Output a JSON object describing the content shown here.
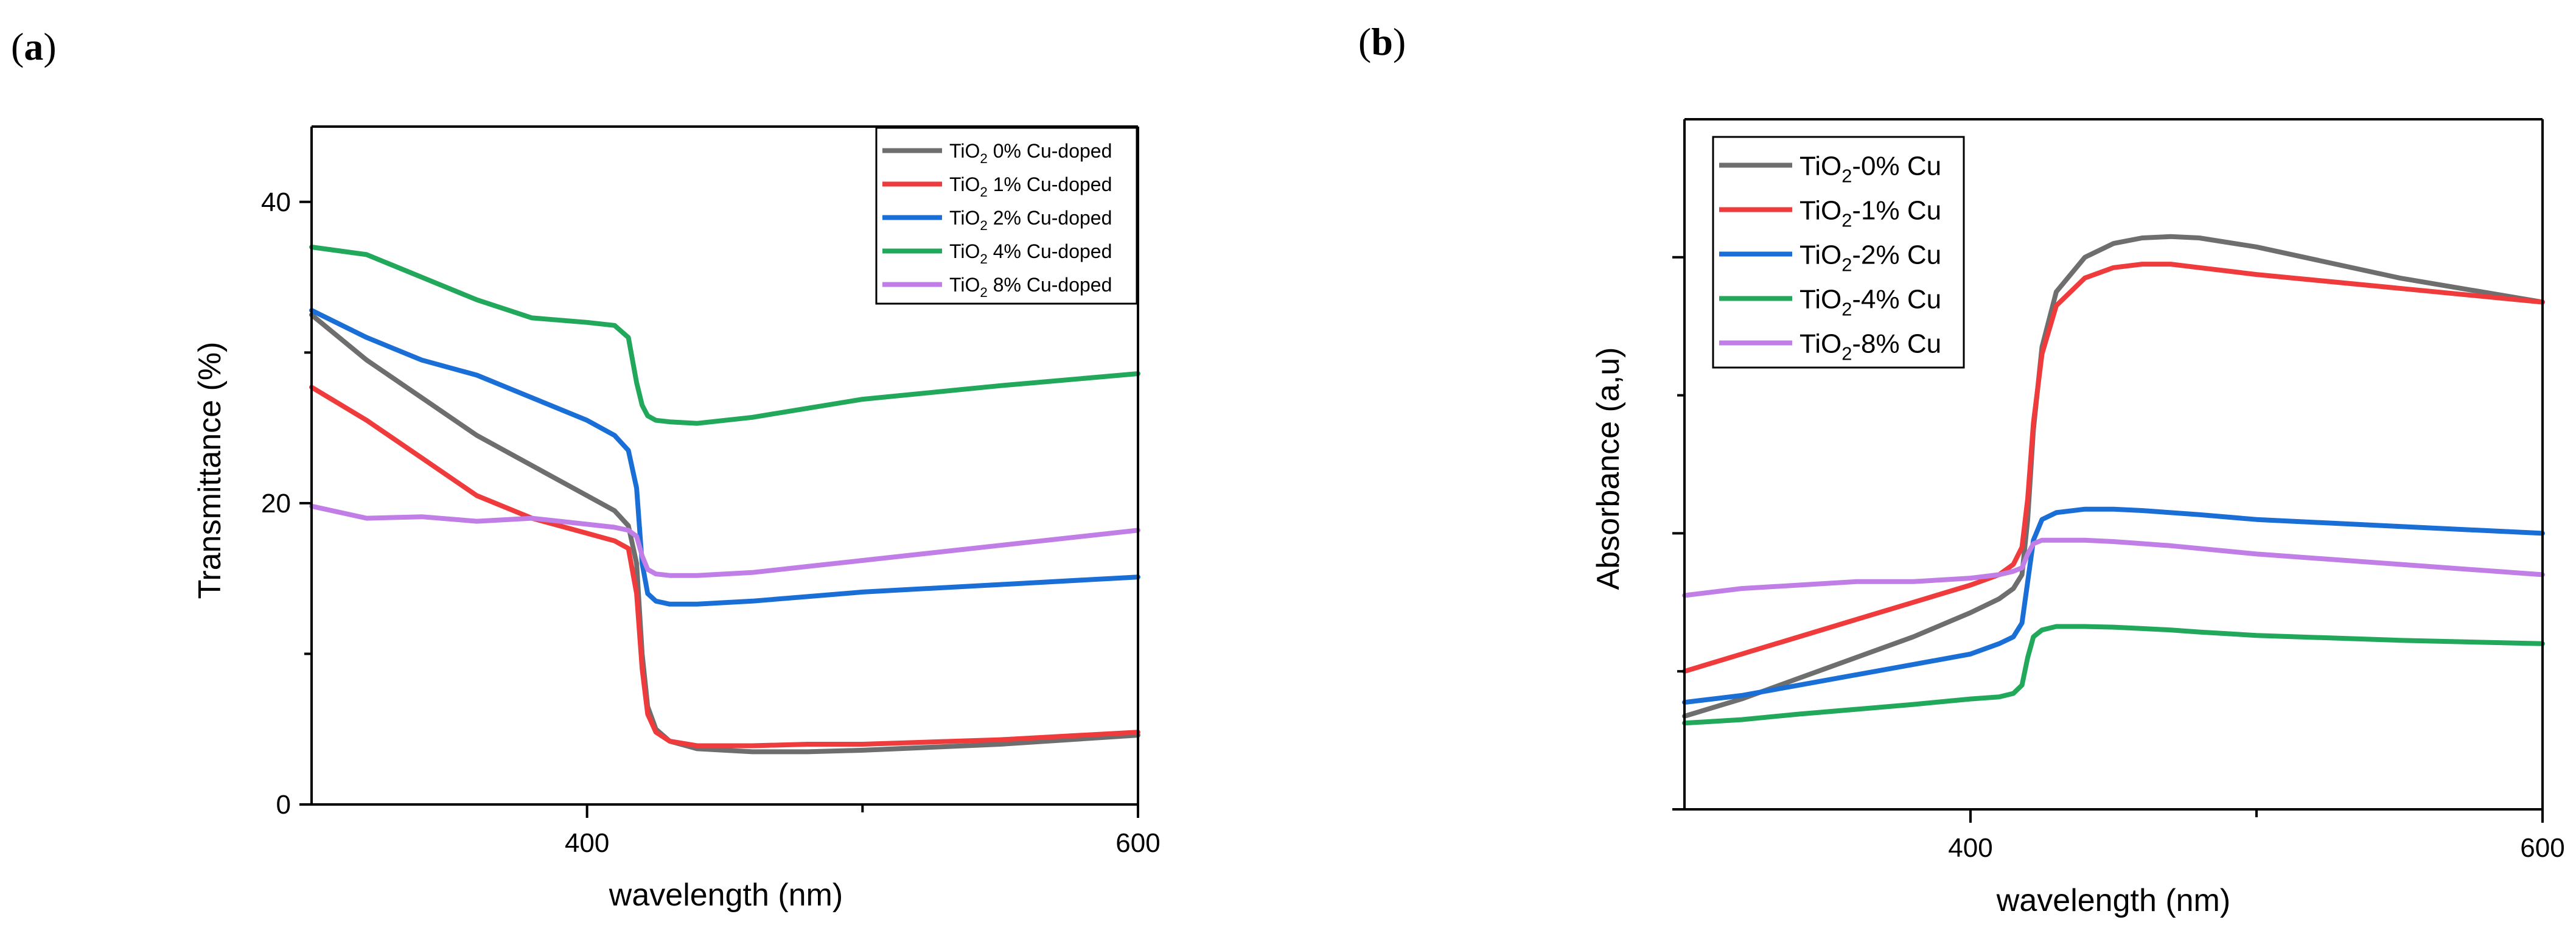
{
  "chart_data": [
    {
      "panel_label": "a",
      "type": "line",
      "xlabel": "wavelength (nm)",
      "ylabel": "Transmittance (%)",
      "xlim": [
        300,
        600
      ],
      "ylim": [
        0,
        45
      ],
      "xticks_major": [
        400,
        600
      ],
      "xticks_minor": [
        500
      ],
      "yticks_major": [
        0,
        20,
        40
      ],
      "yticks_minor": [
        10,
        30
      ],
      "grid": false,
      "legend_position": "top-right",
      "series": [
        {
          "name": "TiO2 0% Cu-doped",
          "legend_main": "TiO",
          "legend_sub": "2",
          "legend_rest": " 0% Cu-doped",
          "color": "#6e6e6e",
          "x": [
            300,
            320,
            340,
            360,
            380,
            400,
            410,
            415,
            418,
            420,
            422,
            425,
            430,
            440,
            460,
            480,
            500,
            550,
            600
          ],
          "y": [
            32.5,
            29.5,
            27,
            24.5,
            22.5,
            20.5,
            19.5,
            18.5,
            16,
            10,
            6.5,
            5,
            4.2,
            3.7,
            3.5,
            3.5,
            3.6,
            4,
            4.6
          ]
        },
        {
          "name": "TiO2 1% Cu-doped",
          "legend_main": "TiO",
          "legend_sub": "2",
          "legend_rest": " 1% Cu-doped",
          "color": "#ef3b3b",
          "x": [
            300,
            320,
            340,
            360,
            380,
            400,
            410,
            415,
            418,
            420,
            422,
            425,
            430,
            440,
            460,
            480,
            500,
            550,
            600
          ],
          "y": [
            27.7,
            25.5,
            23,
            20.5,
            19,
            18,
            17.5,
            17,
            14,
            9,
            6,
            4.8,
            4.2,
            3.9,
            3.9,
            4,
            4,
            4.3,
            4.8
          ]
        },
        {
          "name": "TiO2 2% Cu-doped",
          "legend_main": "TiO",
          "legend_sub": "2",
          "legend_rest": " 2% Cu-doped",
          "color": "#1a6fd6",
          "x": [
            300,
            320,
            340,
            360,
            380,
            400,
            410,
            415,
            418,
            420,
            422,
            425,
            430,
            440,
            460,
            480,
            500,
            550,
            600
          ],
          "y": [
            32.8,
            31,
            29.5,
            28.5,
            27,
            25.5,
            24.5,
            23.5,
            21,
            16,
            14,
            13.5,
            13.3,
            13.3,
            13.5,
            13.8,
            14.1,
            14.6,
            15.1
          ]
        },
        {
          "name": "TiO2 4% Cu-doped",
          "legend_main": "TiO",
          "legend_sub": "2",
          "legend_rest": " 4% Cu-doped",
          "color": "#22a85a",
          "x": [
            300,
            320,
            340,
            360,
            380,
            400,
            410,
            415,
            418,
            420,
            422,
            425,
            430,
            440,
            460,
            480,
            500,
            550,
            600
          ],
          "y": [
            37,
            36.5,
            35,
            33.5,
            32.3,
            32,
            31.8,
            31,
            28,
            26.5,
            25.8,
            25.5,
            25.4,
            25.3,
            25.7,
            26.3,
            26.9,
            27.8,
            28.6
          ]
        },
        {
          "name": "TiO2 8% Cu-doped",
          "legend_main": "TiO",
          "legend_sub": "2",
          "legend_rest": " 8% Cu-doped",
          "color": "#c07ee6",
          "x": [
            300,
            320,
            340,
            360,
            380,
            400,
            410,
            415,
            418,
            420,
            422,
            425,
            430,
            440,
            460,
            480,
            500,
            550,
            600
          ],
          "y": [
            19.8,
            19,
            19.1,
            18.8,
            19,
            18.6,
            18.4,
            18.2,
            17.8,
            16.5,
            15.6,
            15.3,
            15.2,
            15.2,
            15.4,
            15.8,
            16.2,
            17.2,
            18.2
          ]
        }
      ]
    },
    {
      "panel_label": "b",
      "type": "line",
      "xlabel": "wavelength (nm)",
      "ylabel": "Absorbance (a,u)",
      "xlim": [
        300,
        600
      ],
      "ylim": [
        0,
        1
      ],
      "xticks_major": [
        400,
        600
      ],
      "xticks_minor": [
        500
      ],
      "yticks_label": false,
      "grid": false,
      "legend_position": "top-left",
      "series": [
        {
          "name": "TiO2-0% Cu",
          "legend_main": "TiO",
          "legend_sub": "2",
          "legend_rest": "-0% Cu",
          "color": "#6e6e6e",
          "x": [
            300,
            320,
            340,
            360,
            380,
            400,
            410,
            415,
            418,
            420,
            422,
            425,
            430,
            440,
            450,
            460,
            470,
            480,
            500,
            550,
            600
          ],
          "y": [
            0.135,
            0.16,
            0.19,
            0.22,
            0.25,
            0.285,
            0.305,
            0.32,
            0.34,
            0.42,
            0.55,
            0.67,
            0.75,
            0.8,
            0.82,
            0.828,
            0.83,
            0.828,
            0.815,
            0.77,
            0.735
          ]
        },
        {
          "name": "TiO2-1% Cu",
          "legend_main": "TiO",
          "legend_sub": "2",
          "legend_rest": "-1% Cu",
          "color": "#ef3b3b",
          "x": [
            300,
            320,
            340,
            360,
            380,
            400,
            410,
            415,
            418,
            420,
            422,
            425,
            430,
            440,
            450,
            460,
            470,
            480,
            500,
            550,
            600
          ],
          "y": [
            0.2,
            0.225,
            0.25,
            0.275,
            0.3,
            0.325,
            0.34,
            0.355,
            0.38,
            0.45,
            0.56,
            0.66,
            0.73,
            0.77,
            0.785,
            0.79,
            0.79,
            0.785,
            0.775,
            0.755,
            0.735
          ]
        },
        {
          "name": "TiO2-2% Cu",
          "legend_main": "TiO",
          "legend_sub": "2",
          "legend_rest": "-2% Cu",
          "color": "#1a6fd6",
          "x": [
            300,
            320,
            340,
            360,
            380,
            400,
            410,
            415,
            418,
            420,
            422,
            425,
            430,
            440,
            450,
            460,
            470,
            480,
            500,
            550,
            600
          ],
          "y": [
            0.155,
            0.165,
            0.18,
            0.195,
            0.21,
            0.225,
            0.24,
            0.25,
            0.27,
            0.33,
            0.39,
            0.42,
            0.43,
            0.435,
            0.435,
            0.433,
            0.43,
            0.427,
            0.42,
            0.41,
            0.4
          ]
        },
        {
          "name": "TiO2-4% Cu",
          "legend_main": "TiO",
          "legend_sub": "2",
          "legend_rest": "-4% Cu",
          "color": "#22a85a",
          "x": [
            300,
            320,
            340,
            360,
            380,
            400,
            410,
            415,
            418,
            420,
            422,
            425,
            430,
            440,
            450,
            460,
            470,
            480,
            500,
            550,
            600
          ],
          "y": [
            0.125,
            0.13,
            0.138,
            0.145,
            0.152,
            0.16,
            0.163,
            0.168,
            0.18,
            0.22,
            0.25,
            0.26,
            0.265,
            0.265,
            0.264,
            0.262,
            0.26,
            0.257,
            0.252,
            0.245,
            0.24
          ]
        },
        {
          "name": "TiO2-8% Cu",
          "legend_main": "TiO",
          "legend_sub": "2",
          "legend_rest": "-8% Cu",
          "color": "#c07ee6",
          "x": [
            300,
            320,
            340,
            360,
            380,
            400,
            410,
            415,
            418,
            420,
            422,
            425,
            430,
            440,
            450,
            460,
            470,
            480,
            500,
            550,
            600
          ],
          "y": [
            0.31,
            0.32,
            0.325,
            0.33,
            0.33,
            0.335,
            0.34,
            0.345,
            0.35,
            0.37,
            0.385,
            0.39,
            0.39,
            0.39,
            0.388,
            0.385,
            0.382,
            0.378,
            0.37,
            0.355,
            0.34
          ]
        }
      ]
    }
  ]
}
